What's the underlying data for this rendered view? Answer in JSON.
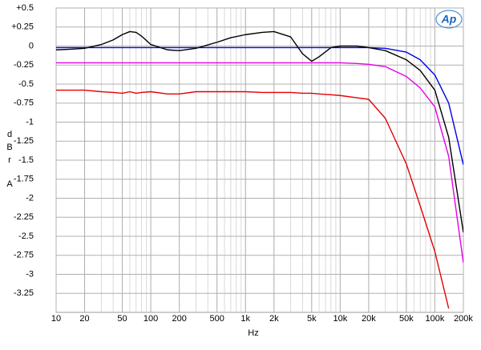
{
  "chart_data": {
    "type": "line",
    "logo": "Ap",
    "ylabel": "dBr A",
    "xlabel": "Hz",
    "xscale": "log",
    "grid": true,
    "minor_grid": true,
    "xlim": [
      10,
      200000
    ],
    "ylim": [
      -3.5,
      0.5
    ],
    "xticks": [
      10,
      20,
      50,
      100,
      200,
      500,
      {
        "value": 1000,
        "label": "1k"
      },
      {
        "value": 2000,
        "label": "2k"
      },
      {
        "value": 5000,
        "label": "5k"
      },
      {
        "value": 10000,
        "label": "10k"
      },
      {
        "value": 20000,
        "label": "20k"
      },
      {
        "value": 50000,
        "label": "50k"
      },
      {
        "value": 100000,
        "label": "100k"
      },
      {
        "value": 200000,
        "label": "200k"
      }
    ],
    "yticks": [
      {
        "value": 0.5,
        "label": "+0.5"
      },
      {
        "value": 0.25,
        "label": "+0.25"
      },
      0,
      -0.25,
      -0.5,
      -0.75,
      -1,
      -1.25,
      -1.5,
      -1.75,
      -2,
      -2.25,
      -2.5,
      -2.75,
      -3,
      -3.25
    ],
    "x": [
      10,
      15,
      20,
      30,
      40,
      50,
      60,
      70,
      80,
      100,
      150,
      200,
      300,
      500,
      700,
      1000,
      1500,
      2000,
      3000,
      4000,
      5000,
      6000,
      8000,
      10000,
      15000,
      20000,
      30000,
      50000,
      70000,
      100000,
      140000,
      200000
    ],
    "series": [
      {
        "color": "#0000e6",
        "values": [
          -0.02,
          -0.02,
          -0.02,
          -0.02,
          -0.02,
          -0.02,
          -0.02,
          -0.02,
          -0.02,
          -0.02,
          -0.02,
          -0.02,
          -0.02,
          -0.02,
          -0.02,
          -0.02,
          -0.02,
          -0.02,
          -0.02,
          -0.02,
          -0.02,
          -0.02,
          -0.02,
          -0.02,
          -0.02,
          -0.02,
          -0.03,
          -0.08,
          -0.18,
          -0.38,
          -0.75,
          -1.56
        ]
      },
      {
        "color": "#000000",
        "values": [
          -0.05,
          -0.04,
          -0.03,
          0.02,
          0.08,
          0.15,
          0.19,
          0.18,
          0.13,
          0.02,
          -0.05,
          -0.06,
          -0.03,
          0.05,
          0.11,
          0.15,
          0.18,
          0.19,
          0.12,
          -0.1,
          -0.2,
          -0.14,
          -0.02,
          0.0,
          0.0,
          -0.02,
          -0.06,
          -0.18,
          -0.32,
          -0.58,
          -1.2,
          -2.45
        ]
      },
      {
        "color": "#e600e6",
        "values": [
          -0.22,
          -0.22,
          -0.22,
          -0.22,
          -0.22,
          -0.22,
          -0.22,
          -0.22,
          -0.22,
          -0.22,
          -0.22,
          -0.22,
          -0.22,
          -0.22,
          -0.22,
          -0.22,
          -0.22,
          -0.22,
          -0.22,
          -0.22,
          -0.22,
          -0.22,
          -0.22,
          -0.22,
          -0.23,
          -0.24,
          -0.27,
          -0.4,
          -0.55,
          -0.8,
          -1.45,
          -2.85
        ]
      },
      {
        "color": "#e60000",
        "values": [
          -0.58,
          -0.58,
          -0.58,
          -0.6,
          -0.61,
          -0.62,
          -0.6,
          -0.62,
          -0.61,
          -0.6,
          -0.63,
          -0.63,
          -0.6,
          -0.6,
          -0.6,
          -0.6,
          -0.61,
          -0.61,
          -0.61,
          -0.62,
          -0.62,
          -0.63,
          -0.64,
          -0.65,
          -0.68,
          -0.7,
          -0.95,
          -1.55,
          -2.1,
          -2.7,
          -3.45,
          null
        ]
      }
    ]
  }
}
